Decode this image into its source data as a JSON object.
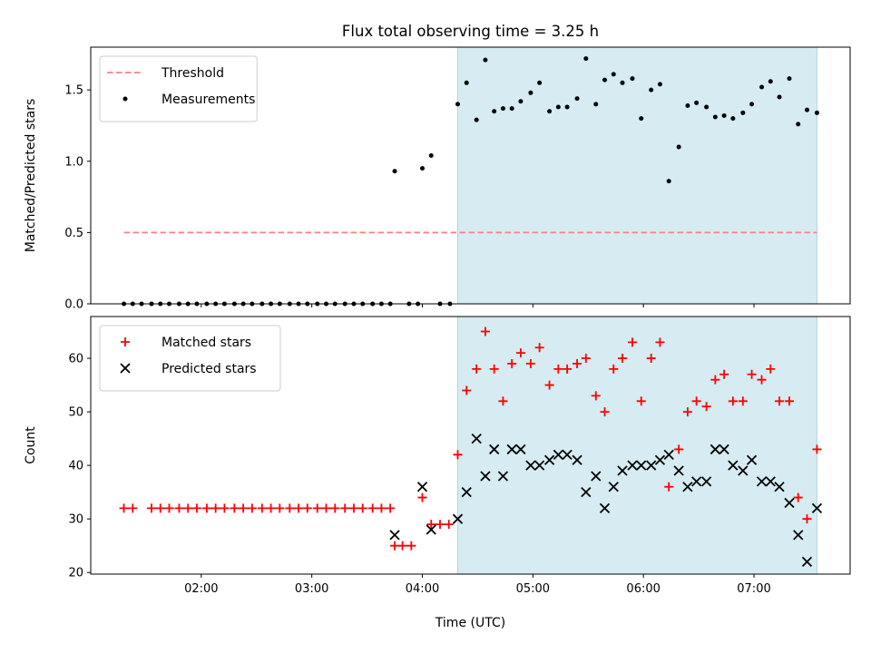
{
  "chart_data": {
    "title": "Flux total observing time = 3.25 h",
    "x_axis": {
      "label": "Time (UTC)",
      "unit": "hours UTC",
      "range": [
        1.0,
        7.87
      ],
      "ticks": [
        {
          "value": 2,
          "label": "02:00"
        },
        {
          "value": 3,
          "label": "03:00"
        },
        {
          "value": 4,
          "label": "04:00"
        },
        {
          "value": 5,
          "label": "05:00"
        },
        {
          "value": 6,
          "label": "06:00"
        },
        {
          "value": 7,
          "label": "07:00"
        }
      ]
    },
    "shaded_span": {
      "x_start": 4.32,
      "x_end": 7.57,
      "color": "#add8e6"
    },
    "panels": [
      {
        "type": "scatter",
        "ylabel": "Matched/Predicted stars",
        "ylim": [
          0,
          1.8
        ],
        "yticks": [
          {
            "value": 0.0,
            "label": "0.0"
          },
          {
            "value": 0.5,
            "label": "0.5"
          },
          {
            "value": 1.0,
            "label": "1.0"
          },
          {
            "value": 1.5,
            "label": "1.5"
          }
        ],
        "legend": {
          "position": "upper-left",
          "items": [
            {
              "label": "Threshold",
              "kind": "dashed-line",
              "color": "#ff7f7f"
            },
            {
              "label": "Measurements",
              "kind": "dot",
              "color": "#000000"
            }
          ]
        },
        "threshold": {
          "name": "Threshold",
          "value": 0.5,
          "x_range": [
            1.3,
            7.57
          ],
          "color": "#ff7f7f"
        },
        "series": [
          {
            "name": "Measurements",
            "marker": "dot",
            "color": "#000000",
            "x": [
              1.3,
              1.38,
              1.46,
              1.55,
              1.63,
              1.71,
              1.8,
              1.88,
              1.96,
              2.05,
              2.13,
              2.21,
              2.3,
              2.38,
              2.46,
              2.55,
              2.63,
              2.71,
              2.8,
              2.88,
              2.96,
              3.05,
              3.13,
              3.21,
              3.3,
              3.38,
              3.46,
              3.55,
              3.63,
              3.71,
              3.75,
              3.88,
              3.96,
              4.0,
              4.08,
              4.16,
              4.25,
              4.32,
              4.4,
              4.49,
              4.57,
              4.65,
              4.73,
              4.81,
              4.89,
              4.98,
              5.06,
              5.15,
              5.23,
              5.31,
              5.4,
              5.48,
              5.57,
              5.65,
              5.73,
              5.81,
              5.9,
              5.98,
              6.07,
              6.15,
              6.23,
              6.32,
              6.4,
              6.48,
              6.57,
              6.65,
              6.73,
              6.81,
              6.9,
              6.98,
              7.07,
              7.15,
              7.23,
              7.32,
              7.4,
              7.48,
              7.57
            ],
            "y": [
              0,
              0,
              0,
              0,
              0,
              0,
              0,
              0,
              0,
              0,
              0,
              0,
              0,
              0,
              0,
              0,
              0,
              0,
              0,
              0,
              0,
              0,
              0,
              0,
              0,
              0,
              0,
              0,
              0,
              0,
              0.93,
              0,
              0,
              0.95,
              1.04,
              0,
              0,
              1.4,
              1.55,
              1.29,
              1.71,
              1.35,
              1.37,
              1.37,
              1.42,
              1.48,
              1.55,
              1.35,
              1.38,
              1.38,
              1.44,
              1.72,
              1.4,
              1.57,
              1.61,
              1.55,
              1.58,
              1.3,
              1.5,
              1.54,
              0.86,
              1.1,
              1.39,
              1.41,
              1.38,
              1.31,
              1.32,
              1.3,
              1.34,
              1.4,
              1.52,
              1.56,
              1.45,
              1.58,
              1.26,
              1.36,
              1.34
            ]
          }
        ]
      },
      {
        "type": "scatter",
        "ylabel": "Count",
        "ylim": [
          19.7,
          67.8
        ],
        "yticks": [
          {
            "value": 20,
            "label": "20"
          },
          {
            "value": 30,
            "label": "30"
          },
          {
            "value": 40,
            "label": "40"
          },
          {
            "value": 50,
            "label": "50"
          },
          {
            "value": 60,
            "label": "60"
          }
        ],
        "legend": {
          "position": "upper-left",
          "items": [
            {
              "label": "Matched stars",
              "kind": "plus",
              "color": "#ff0000"
            },
            {
              "label": "Predicted stars",
              "kind": "cross",
              "color": "#000000"
            }
          ]
        },
        "series": [
          {
            "name": "Matched stars",
            "marker": "plus",
            "color": "#ff0000",
            "x": [
              1.3,
              1.38,
              1.55,
              1.63,
              1.71,
              1.8,
              1.88,
              1.96,
              2.05,
              2.13,
              2.21,
              2.3,
              2.38,
              2.46,
              2.55,
              2.63,
              2.71,
              2.8,
              2.88,
              2.96,
              3.05,
              3.13,
              3.21,
              3.3,
              3.38,
              3.46,
              3.55,
              3.63,
              3.71,
              3.75,
              3.82,
              3.9,
              4.0,
              4.08,
              4.16,
              4.24,
              4.32,
              4.4,
              4.49,
              4.57,
              4.65,
              4.73,
              4.81,
              4.89,
              4.98,
              5.06,
              5.15,
              5.23,
              5.31,
              5.4,
              5.48,
              5.57,
              5.65,
              5.73,
              5.81,
              5.9,
              5.98,
              6.07,
              6.15,
              6.23,
              6.32,
              6.4,
              6.48,
              6.57,
              6.65,
              6.73,
              6.81,
              6.9,
              6.98,
              7.07,
              7.15,
              7.23,
              7.32,
              7.4,
              7.48,
              7.57
            ],
            "y": [
              32,
              32,
              32,
              32,
              32,
              32,
              32,
              32,
              32,
              32,
              32,
              32,
              32,
              32,
              32,
              32,
              32,
              32,
              32,
              32,
              32,
              32,
              32,
              32,
              32,
              32,
              32,
              32,
              32,
              25,
              25,
              25,
              34,
              29,
              29,
              29,
              42,
              54,
              58,
              65,
              58,
              52,
              59,
              61,
              59,
              62,
              55,
              58,
              58,
              59,
              60,
              53,
              50,
              58,
              60,
              63,
              52,
              60,
              63,
              36,
              43,
              50,
              52,
              51,
              56,
              57,
              52,
              52,
              57,
              56,
              58,
              52,
              52,
              34,
              30,
              43
            ]
          },
          {
            "name": "Predicted stars",
            "marker": "cross",
            "color": "#000000",
            "x": [
              3.75,
              4.0,
              4.08,
              4.32,
              4.4,
              4.49,
              4.57,
              4.65,
              4.73,
              4.81,
              4.89,
              4.98,
              5.06,
              5.15,
              5.23,
              5.31,
              5.4,
              5.48,
              5.57,
              5.65,
              5.73,
              5.81,
              5.9,
              5.98,
              6.07,
              6.15,
              6.23,
              6.32,
              6.4,
              6.48,
              6.57,
              6.65,
              6.73,
              6.81,
              6.9,
              6.98,
              7.07,
              7.15,
              7.23,
              7.32,
              7.4,
              7.48,
              7.57
            ],
            "y": [
              27,
              36,
              28,
              30,
              35,
              45,
              38,
              43,
              38,
              43,
              43,
              40,
              40,
              41,
              42,
              42,
              41,
              35,
              38,
              32,
              36,
              39,
              40,
              40,
              40,
              41,
              42,
              39,
              36,
              37,
              37,
              43,
              43,
              40,
              39,
              41,
              37,
              37,
              36,
              33,
              27,
              22,
              32
            ]
          }
        ]
      }
    ]
  }
}
